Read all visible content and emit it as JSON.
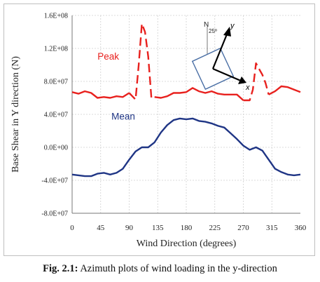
{
  "chart_data": {
    "type": "line",
    "ylabel": "Base Shear in Y direction (N)",
    "xlabel": "Wind Direction (degrees)",
    "x_ticks": [
      "0",
      "45",
      "90",
      "135",
      "180",
      "225",
      "270",
      "315",
      "360"
    ],
    "y_ticks": [
      "1.6E+08",
      "1.2E+08",
      "8.0E+07",
      "4.0E+07",
      "0.0E+00",
      "-4.0E+07",
      "-8.0E+07"
    ],
    "xlim": [
      0,
      360
    ],
    "ylim": [
      -80000000,
      160000000
    ],
    "grid": true,
    "series": [
      {
        "name": "Peak",
        "color": "#e8211e",
        "dashed_segments": [
          [
            90,
            135
          ],
          [
            270,
            315
          ]
        ],
        "x": [
          0,
          10,
          20,
          30,
          40,
          50,
          60,
          70,
          80,
          90,
          95,
          100,
          105,
          110,
          115,
          120,
          125,
          130,
          140,
          150,
          160,
          170,
          180,
          190,
          200,
          210,
          220,
          230,
          240,
          250,
          260,
          270,
          280,
          285,
          290,
          295,
          300,
          305,
          310,
          320,
          330,
          340,
          350,
          360
        ],
        "values": [
          67000000,
          65000000,
          68000000,
          66000000,
          60000000,
          61000000,
          60000000,
          62000000,
          61000000,
          66000000,
          62000000,
          58000000,
          100000000,
          150000000,
          140000000,
          110000000,
          60000000,
          61000000,
          60000000,
          62000000,
          66000000,
          66000000,
          67000000,
          72000000,
          68000000,
          66000000,
          68000000,
          65000000,
          64000000,
          64000000,
          64000000,
          57000000,
          57000000,
          70000000,
          102000000,
          95000000,
          88000000,
          78000000,
          64000000,
          68000000,
          74000000,
          73000000,
          70000000,
          67000000
        ]
      },
      {
        "name": "Mean",
        "color": "#1f3585",
        "x": [
          0,
          10,
          20,
          30,
          40,
          50,
          60,
          70,
          80,
          90,
          100,
          110,
          120,
          130,
          140,
          150,
          160,
          170,
          180,
          190,
          200,
          210,
          220,
          230,
          240,
          250,
          260,
          270,
          280,
          290,
          300,
          310,
          320,
          330,
          340,
          350,
          360
        ],
        "values": [
          -33000000,
          -34000000,
          -35000000,
          -35000000,
          -32000000,
          -31000000,
          -33000000,
          -31000000,
          -26000000,
          -15000000,
          -5000000,
          0,
          0,
          6000000,
          18000000,
          27000000,
          33000000,
          35000000,
          34000000,
          35000000,
          32000000,
          31000000,
          29000000,
          26000000,
          24000000,
          17000000,
          10000000,
          2000000,
          -3000000,
          0,
          -4000000,
          -15000000,
          -26000000,
          -30000000,
          -33000000,
          -34000000,
          -33000000
        ]
      }
    ]
  },
  "inset": {
    "north_label": "N",
    "angle_label": "25º",
    "y_axis_label": "y",
    "x_axis_label": "x"
  },
  "caption": {
    "label": "Fig. 2.1:",
    "text": " Azimuth plots of wind loading in the y-direction"
  }
}
